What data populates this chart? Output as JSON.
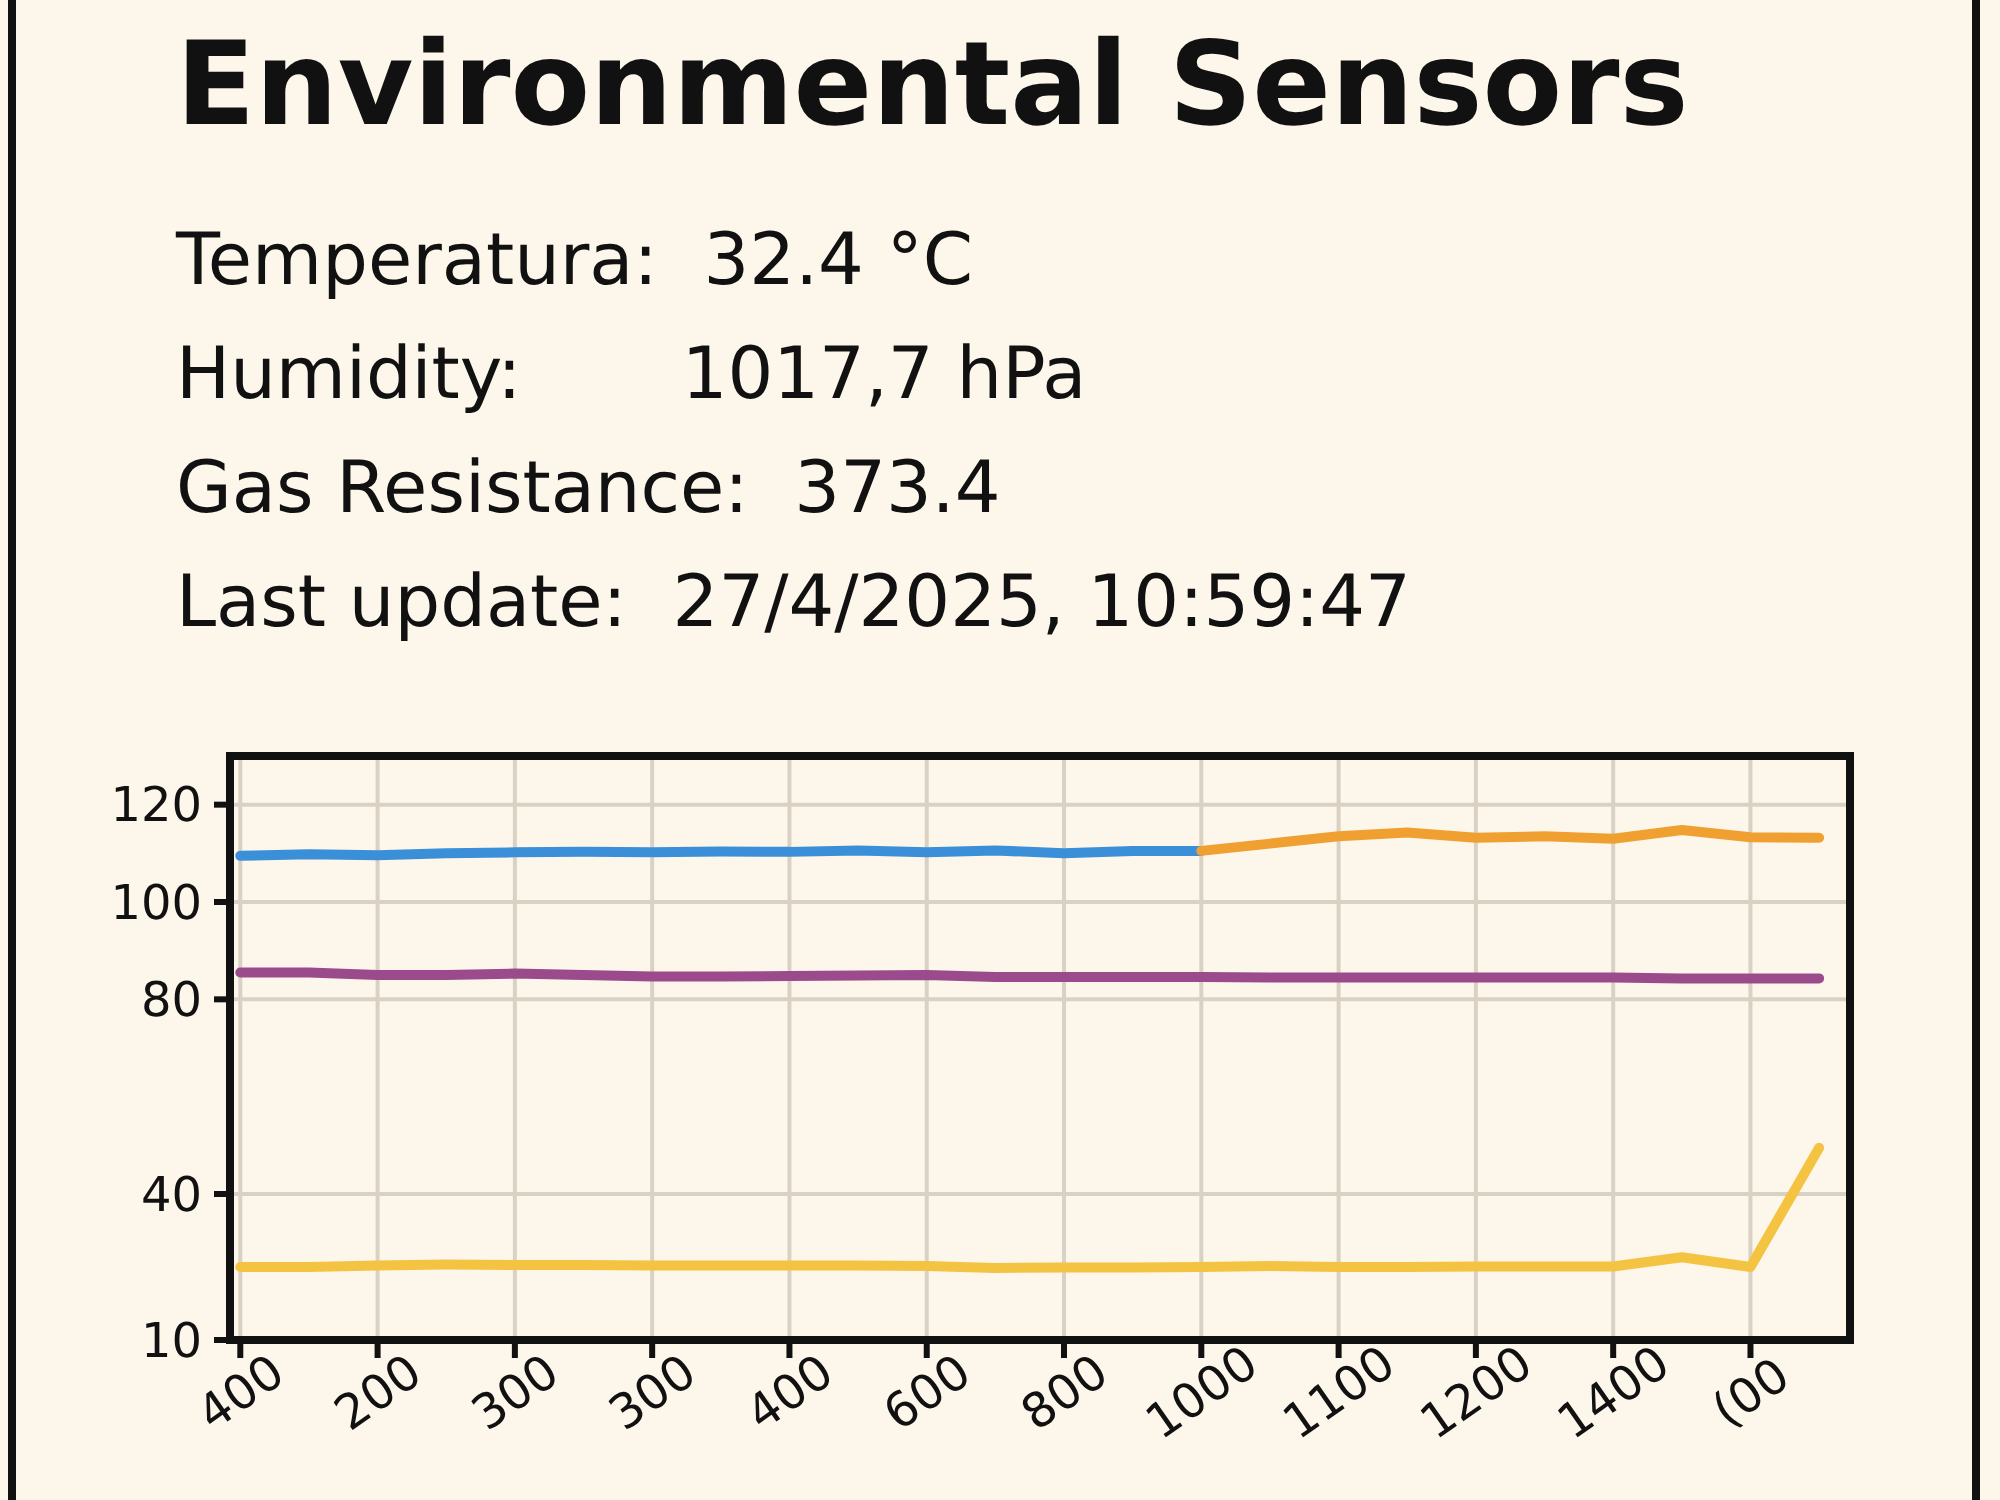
{
  "chart_data": {
    "type": "line",
    "title": "Environmental Sensors",
    "annotations": [
      "Temperatura:  32.4 °C",
      "Humidity:       1017,7 hPa",
      "Gas Resistance:  373.4",
      "Last update:  27/4/2025, 10:59:47"
    ],
    "categories": [
      "400",
      null,
      "200",
      null,
      "300",
      null,
      "300",
      null,
      "400",
      null,
      "600",
      null,
      "800",
      null,
      "1000",
      null,
      "1100",
      null,
      "1200",
      null,
      "1400",
      null,
      "(00",
      null
    ],
    "ylim": [
      10,
      130
    ],
    "yticks": [
      120,
      100,
      80,
      40,
      10
    ],
    "grid": true,
    "series": [
      {
        "color": "#3a8fd8",
        "values": [
          109.5,
          109.8,
          109.6,
          110,
          110.2,
          110.3,
          110.2,
          110.4,
          110.3,
          110.6,
          110.2,
          110.6,
          110,
          110.5,
          110.5,
          null,
          null,
          null,
          null,
          null,
          null,
          null,
          null,
          null
        ]
      },
      {
        "color": "#f0a030",
        "values": [
          null,
          null,
          null,
          null,
          null,
          null,
          null,
          null,
          null,
          null,
          null,
          null,
          null,
          null,
          110.5,
          112,
          113.5,
          114.3,
          113.2,
          113.5,
          113,
          114.8,
          113.3,
          113.2
        ]
      },
      {
        "color": "#9b4a8c",
        "values": [
          85.5,
          85.5,
          85,
          85,
          85.3,
          85,
          84.7,
          84.7,
          84.8,
          84.9,
          85,
          84.6,
          84.6,
          84.6,
          84.6,
          84.5,
          84.5,
          84.5,
          84.5,
          84.5,
          84.5,
          84.3,
          84.3,
          84.3
        ]
      },
      {
        "color": "#f5c342",
        "values": [
          25,
          25,
          25.3,
          25.5,
          25.4,
          25.4,
          25.3,
          25.3,
          25.3,
          25.3,
          25.2,
          24.8,
          24.9,
          24.9,
          25,
          25.2,
          25,
          25,
          25.1,
          25.1,
          25.1,
          27,
          25,
          49.5
        ]
      }
    ]
  }
}
